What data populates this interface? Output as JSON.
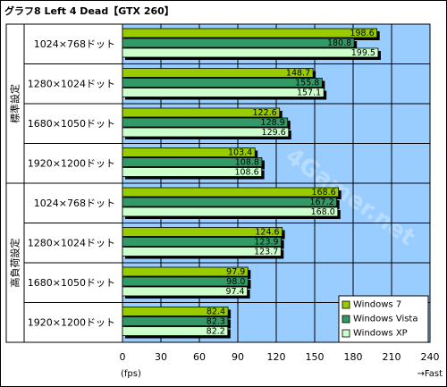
{
  "chart_data": {
    "type": "bar",
    "orientation": "horizontal",
    "title": "グラフ8  Left 4 Dead【GTX 260】",
    "groups": [
      {
        "label": "標準設定",
        "categories": [
          "1024×768ドット",
          "1280×1024ドット",
          "1680×1050ドット",
          "1920×1200ドット"
        ]
      },
      {
        "label": "高負荷設定",
        "categories": [
          "1024×768ドット",
          "1280×1024ドット",
          "1680×1050ドット",
          "1920×1200ドット"
        ]
      }
    ],
    "series": [
      {
        "name": "Windows 7",
        "color": "#99cc00",
        "values": [
          198.6,
          148.7,
          122.6,
          103.4,
          168.6,
          124.6,
          97.9,
          82.4
        ]
      },
      {
        "name": "Windows Vista",
        "color": "#339966",
        "values": [
          180.8,
          155.8,
          128.9,
          108.8,
          167.2,
          123.9,
          98.0,
          82.3
        ]
      },
      {
        "name": "Windows XP",
        "color": "#ccffcc",
        "values": [
          199.5,
          157.1,
          129.6,
          108.6,
          168.0,
          123.7,
          97.4,
          82.2
        ]
      }
    ],
    "xlim": [
      0,
      240
    ],
    "xticks": [
      0,
      30,
      60,
      90,
      120,
      150,
      180,
      210,
      240
    ],
    "xlabel": "(fps)",
    "xlabel_right": "→Fast",
    "grid": true,
    "legend_position": "bottom-right",
    "watermark": "4Gamer.net",
    "colors": {
      "plot_bg": "#99ccff",
      "label_bg": "#ffffff",
      "border": "#000000"
    }
  }
}
